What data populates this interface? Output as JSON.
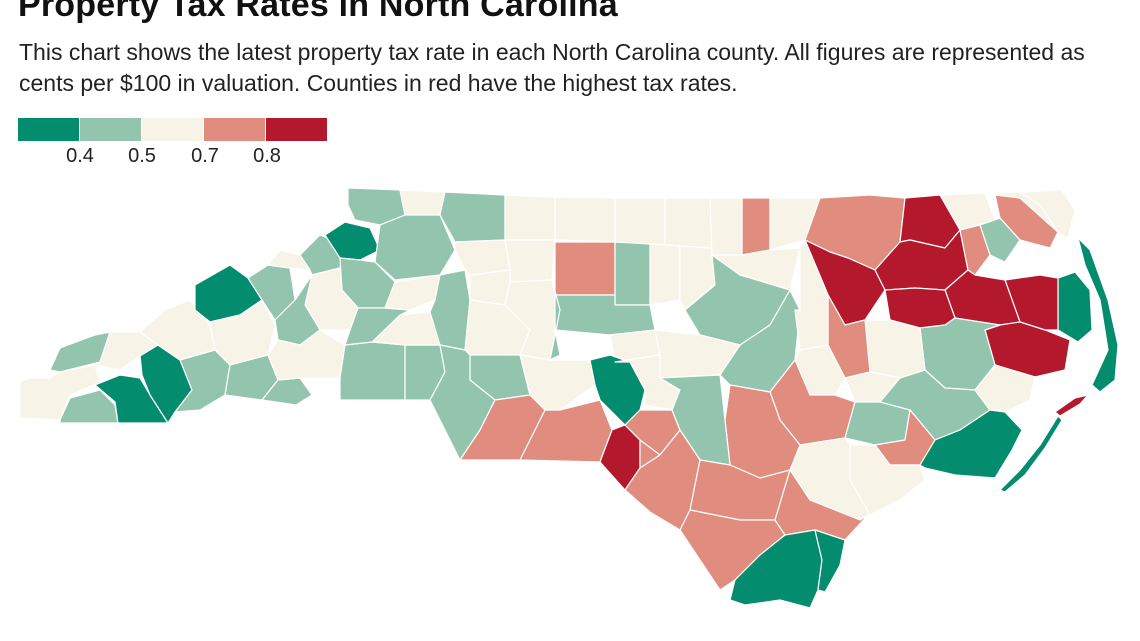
{
  "header": {
    "title": "Property Tax Rates in North Carolina",
    "subtitle": "This chart shows the latest property tax rate in each North Carolina county. All figures are represented as cents per $100 in valuation. Counties in red have the highest tax rates."
  },
  "legend": {
    "bins": [
      {
        "color": "#038c6e"
      },
      {
        "color": "#93c5ae"
      },
      {
        "color": "#f7f4e7"
      },
      {
        "color": "#e08c7e"
      },
      {
        "color": "#b3182d"
      }
    ],
    "ticks": [
      "0.4",
      "0.5",
      "0.7",
      "0.8"
    ]
  },
  "colors": {
    "dark_green": "#038c6e",
    "light_green": "#93c5ae",
    "cream": "#f7f4e7",
    "salmon": "#e08c7e",
    "dark_red": "#b3182d",
    "border": "#ffffff"
  },
  "map": {
    "region": "North Carolina counties",
    "encoding": "property tax rate, cents per $100 valuation",
    "counties": [
      {
        "id": "cherokee",
        "rate_class": "cream"
      },
      {
        "id": "clay",
        "rate_class": "light_green"
      },
      {
        "id": "macon",
        "rate_class": "dark_green"
      },
      {
        "id": "jackson",
        "rate_class": "dark_green"
      },
      {
        "id": "graham",
        "rate_class": "light_green"
      },
      {
        "id": "swain",
        "rate_class": "cream"
      },
      {
        "id": "haywood",
        "rate_class": "cream"
      },
      {
        "id": "transylvania",
        "rate_class": "light_green"
      },
      {
        "id": "madison",
        "rate_class": "dark_green"
      },
      {
        "id": "buncombe",
        "rate_class": "cream"
      },
      {
        "id": "henderson",
        "rate_class": "light_green"
      },
      {
        "id": "polk",
        "rate_class": "light_green"
      },
      {
        "id": "yancey",
        "rate_class": "light_green"
      },
      {
        "id": "mitchell",
        "rate_class": "cream"
      },
      {
        "id": "avery",
        "rate_class": "light_green"
      },
      {
        "id": "ashe",
        "rate_class": "light_green"
      },
      {
        "id": "watauga",
        "rate_class": "dark_green"
      },
      {
        "id": "alleghany",
        "rate_class": "cream"
      },
      {
        "id": "wilkes",
        "rate_class": "light_green"
      },
      {
        "id": "caldwell",
        "rate_class": "light_green"
      },
      {
        "id": "burke",
        "rate_class": "cream"
      },
      {
        "id": "mcdowell",
        "rate_class": "light_green"
      },
      {
        "id": "rutherford",
        "rate_class": "cream"
      },
      {
        "id": "cleveland",
        "rate_class": "light_green"
      },
      {
        "id": "gaston",
        "rate_class": "light_green"
      },
      {
        "id": "lincoln",
        "rate_class": "cream"
      },
      {
        "id": "catawba",
        "rate_class": "light_green"
      },
      {
        "id": "alexander",
        "rate_class": "cream"
      },
      {
        "id": "iredell",
        "rate_class": "light_green"
      },
      {
        "id": "surry",
        "rate_class": "light_green"
      },
      {
        "id": "yadkin",
        "rate_class": "cream"
      },
      {
        "id": "stokes",
        "rate_class": "cream"
      },
      {
        "id": "forsyth",
        "rate_class": "cream"
      },
      {
        "id": "davie",
        "rate_class": "cream"
      },
      {
        "id": "rockingham",
        "rate_class": "cream"
      },
      {
        "id": "guilford",
        "rate_class": "salmon"
      },
      {
        "id": "caswell",
        "rate_class": "cream"
      },
      {
        "id": "alamance",
        "rate_class": "light_green"
      },
      {
        "id": "person",
        "rate_class": "cream"
      },
      {
        "id": "orange",
        "rate_class": "cream"
      },
      {
        "id": "durham",
        "rate_class": "cream"
      },
      {
        "id": "granville",
        "rate_class": "salmon"
      },
      {
        "id": "vance",
        "rate_class": "cream"
      },
      {
        "id": "warren",
        "rate_class": "cream"
      },
      {
        "id": "northampton",
        "rate_class": "salmon"
      },
      {
        "id": "halifax",
        "rate_class": "dark_red"
      },
      {
        "id": "hertford",
        "rate_class": "dark_red"
      },
      {
        "id": "gates",
        "rate_class": "cream"
      },
      {
        "id": "bertie",
        "rate_class": "dark_red"
      },
      {
        "id": "chowan",
        "rate_class": "salmon"
      },
      {
        "id": "perquimans",
        "rate_class": "light_green"
      },
      {
        "id": "pasquotank",
        "rate_class": "salmon"
      },
      {
        "id": "camden",
        "rate_class": "cream"
      },
      {
        "id": "currituck",
        "rate_class": "cream"
      },
      {
        "id": "dare",
        "rate_class": "dark_green"
      },
      {
        "id": "tyrrell",
        "rate_class": "dark_red"
      },
      {
        "id": "washington",
        "rate_class": "dark_red"
      },
      {
        "id": "martin",
        "rate_class": "dark_red"
      },
      {
        "id": "hyde",
        "rate_class": "dark_red"
      },
      {
        "id": "beaufort",
        "rate_class": "light_green"
      },
      {
        "id": "pitt",
        "rate_class": "cream"
      },
      {
        "id": "edgecombe",
        "rate_class": "salmon"
      },
      {
        "id": "nash",
        "rate_class": "cream"
      },
      {
        "id": "wilson",
        "rate_class": "cream"
      },
      {
        "id": "franklin",
        "rate_class": "cream"
      },
      {
        "id": "wake",
        "rate_class": "light_green"
      },
      {
        "id": "johnston",
        "rate_class": "light_green"
      },
      {
        "id": "wayne",
        "rate_class": "salmon"
      },
      {
        "id": "greene",
        "rate_class": "cream"
      },
      {
        "id": "lenoir",
        "rate_class": "light_green"
      },
      {
        "id": "craven",
        "rate_class": "light_green"
      },
      {
        "id": "pamlico",
        "rate_class": "cream"
      },
      {
        "id": "carteret",
        "rate_class": "dark_green"
      },
      {
        "id": "jones",
        "rate_class": "salmon"
      },
      {
        "id": "onslow",
        "rate_class": "cream"
      },
      {
        "id": "duplin",
        "rate_class": "cream"
      },
      {
        "id": "sampson",
        "rate_class": "salmon"
      },
      {
        "id": "harnett",
        "rate_class": "cream"
      },
      {
        "id": "lee",
        "rate_class": "cream"
      },
      {
        "id": "chatham",
        "rate_class": "light_green"
      },
      {
        "id": "randolph",
        "rate_class": "light_green"
      },
      {
        "id": "davidson",
        "rate_class": "cream"
      },
      {
        "id": "rowan",
        "rate_class": "cream"
      },
      {
        "id": "cabarrus",
        "rate_class": "light_green"
      },
      {
        "id": "mecklenburg",
        "rate_class": "light_green"
      },
      {
        "id": "union",
        "rate_class": "salmon"
      },
      {
        "id": "stanly",
        "rate_class": "cream"
      },
      {
        "id": "montgomery",
        "rate_class": "dark_green"
      },
      {
        "id": "anson",
        "rate_class": "salmon"
      },
      {
        "id": "richmond",
        "rate_class": "dark_red"
      },
      {
        "id": "moore",
        "rate_class": "cream"
      },
      {
        "id": "hoke",
        "rate_class": "salmon"
      },
      {
        "id": "scotland",
        "rate_class": "salmon"
      },
      {
        "id": "cumberland",
        "rate_class": "light_green"
      },
      {
        "id": "robeson",
        "rate_class": "salmon"
      },
      {
        "id": "bladen",
        "rate_class": "salmon"
      },
      {
        "id": "columbus",
        "rate_class": "salmon"
      },
      {
        "id": "pender",
        "rate_class": "salmon"
      },
      {
        "id": "brunswick",
        "rate_class": "dark_green"
      },
      {
        "id": "new_hanover",
        "rate_class": "dark_green"
      }
    ]
  }
}
